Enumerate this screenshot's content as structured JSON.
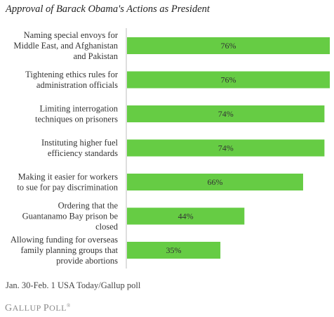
{
  "chart_title": "Approval of Barack Obama's Actions as President",
  "source_note": "Jan. 30-Feb. 1 USA Today/Gallup poll",
  "logo": {
    "name_g": "G",
    "name_rest": "ALLUP",
    "word_p": "P",
    "word_rest": "OLL",
    "mark": "®"
  },
  "colors": {
    "bar": "#66cc44",
    "axis": "#bdbdbd",
    "label_text": "#333333",
    "value_text": "#333333"
  },
  "chart_data": {
    "type": "bar",
    "orientation": "horizontal",
    "title": "Approval of Barack Obama's Actions as President",
    "categories": [
      [
        "Naming special envoys for",
        "Middle East, and Afghanistan",
        "and Pakistan"
      ],
      [
        "Tightening ethics rules for",
        "administration officials"
      ],
      [
        "Limiting interrogation",
        "techniques on prisoners"
      ],
      [
        "Instituting higher fuel",
        "efficiency standards"
      ],
      [
        "Making it easier for workers",
        "to sue for pay discrimination"
      ],
      [
        "Ordering that the",
        "Guantanamo Bay prison be",
        "closed"
      ],
      [
        "Allowing funding for overseas",
        "family planning groups that",
        "provide abortions"
      ]
    ],
    "values": [
      76,
      76,
      74,
      74,
      66,
      44,
      35
    ],
    "value_labels": [
      "76%",
      "76%",
      "74%",
      "74%",
      "66%",
      "44%",
      "35%"
    ],
    "xlim": [
      0,
      76
    ],
    "grid": false,
    "legend": "none"
  }
}
